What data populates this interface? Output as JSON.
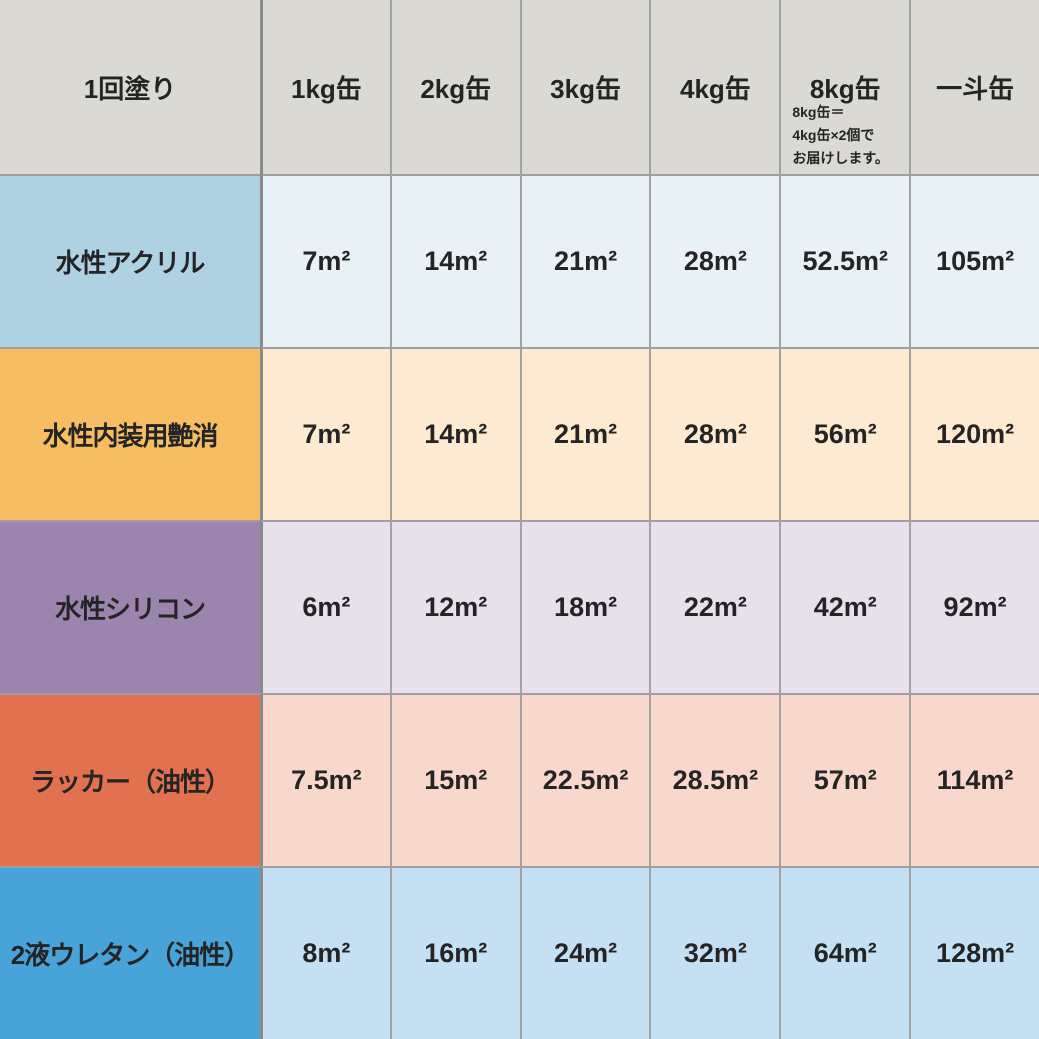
{
  "table": {
    "title_semantic": "paint-coverage-per-can-size",
    "header": {
      "row_label": "1回塗り",
      "columns": [
        "1kg缶",
        "2kg缶",
        "3kg缶",
        "4kg缶",
        "8kg缶",
        "一斗缶"
      ],
      "note_lines": [
        "8kg缶＝",
        "4kg缶×2個で",
        "お届けします。"
      ],
      "bg": "#dbd9d3"
    },
    "rows": [
      {
        "label": "水性アクリル",
        "values": [
          "7m²",
          "14m²",
          "21m²",
          "28m²",
          "52.5m²",
          "105m²"
        ],
        "label_bg": "#aed2e2",
        "cell_bg": "#e8f1f6"
      },
      {
        "label": "水性内装用艶消",
        "values": [
          "7m²",
          "14m²",
          "21m²",
          "28m²",
          "56m²",
          "120m²"
        ],
        "label_bg": "#f6bd63",
        "cell_bg": "#fcebd2"
      },
      {
        "label": "水性シリコン",
        "values": [
          "6m²",
          "12m²",
          "18m²",
          "22m²",
          "42m²",
          "92m²"
        ],
        "label_bg": "#9b84ae",
        "cell_bg": "#e7e1ec"
      },
      {
        "label": "ラッカー（油性）",
        "values": [
          "7.5m²",
          "15m²",
          "22.5m²",
          "28.5m²",
          "57m²",
          "114m²"
        ],
        "label_bg": "#e1714f",
        "cell_bg": "#f8d8cd"
      },
      {
        "label": "2液ウレタン（油性）",
        "values": [
          "8m²",
          "16m²",
          "24m²",
          "32m²",
          "64m²",
          "128m²"
        ],
        "label_bg": "#47a3d8",
        "cell_bg": "#c4e0f2"
      }
    ],
    "colors": {
      "header_bg": "#dbd9d3",
      "grid_line_vertical": "#a2a2a2",
      "grid_line_label_separator": "#8a8a8a",
      "grid_line_horizontal": "#a09ea2",
      "text": "#242424"
    }
  }
}
